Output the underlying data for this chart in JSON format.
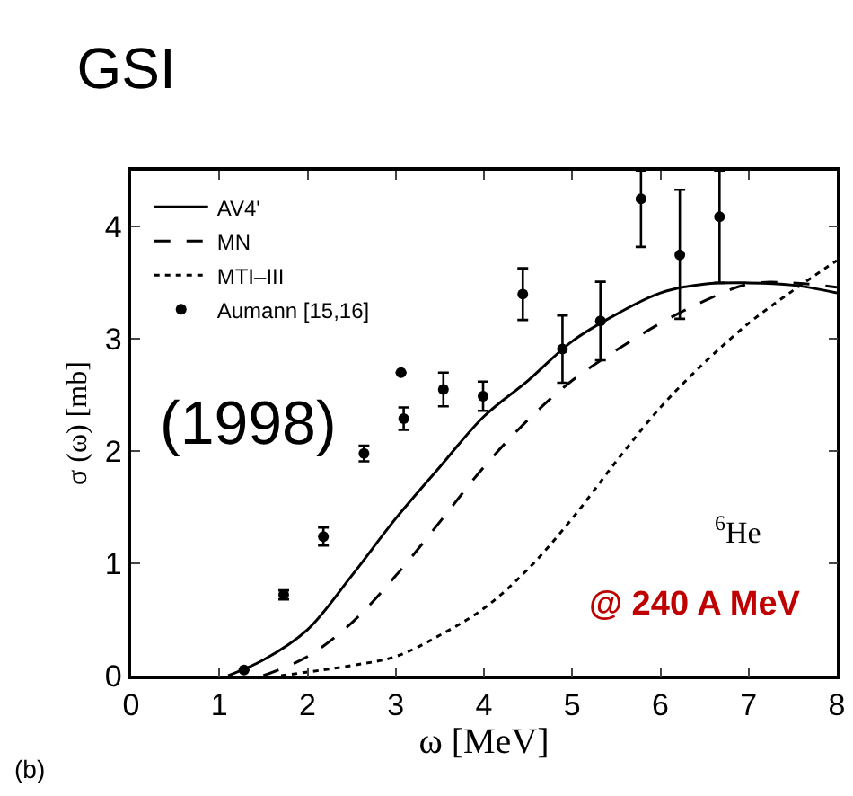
{
  "chart_data": {
    "type": "line",
    "title": "GSI",
    "xlabel": "ω [MeV]",
    "ylabel": "σ (ω) [mb]",
    "annotations": [
      "(1998)",
      "$^{6}$He",
      "@ 240 A MeV",
      "(b)"
    ],
    "xlim": [
      0,
      8
    ],
    "ylim": [
      0,
      4.5
    ],
    "xticks": [
      0,
      1,
      2,
      3,
      4,
      5,
      6,
      7,
      8
    ],
    "yticks": [
      0,
      1,
      2,
      3,
      4
    ],
    "grid": false,
    "legend": "top left",
    "series": [
      {
        "name": "AV4'",
        "color": "#000000",
        "line_style": "solid",
        "marker": "none",
        "x": [
          1.1,
          1.5,
          2,
          2.5,
          3,
          3.5,
          4,
          4.5,
          5,
          5.5,
          6,
          6.5,
          7,
          7.5,
          8
        ],
        "values": [
          0,
          0.14,
          0.41,
          0.89,
          1.4,
          1.86,
          2.31,
          2.63,
          2.98,
          3.22,
          3.41,
          3.49,
          3.5,
          3.48,
          3.41
        ]
      },
      {
        "name": "MN",
        "color": "#000000",
        "line_style": "dashed",
        "marker": "none",
        "x": [
          1.5,
          2,
          2.5,
          3,
          3.5,
          4,
          4.5,
          5,
          5.5,
          6,
          6.5,
          7,
          7.5,
          8
        ],
        "values": [
          0,
          0.17,
          0.47,
          0.89,
          1.37,
          1.86,
          2.28,
          2.63,
          2.9,
          3.14,
          3.34,
          3.49,
          3.5,
          3.46
        ]
      },
      {
        "name": "MTI–III",
        "color": "#000000",
        "line_style": "dotted",
        "marker": "none",
        "x": [
          1.7,
          2.5,
          3,
          3.5,
          4,
          4.5,
          5,
          5.5,
          6,
          6.5,
          7,
          7.5,
          8
        ],
        "values": [
          0,
          0.09,
          0.17,
          0.36,
          0.6,
          0.95,
          1.4,
          1.91,
          2.39,
          2.79,
          3.14,
          3.43,
          3.7
        ]
      },
      {
        "name": "Aumann [15,16]",
        "type": "scatter",
        "color": "#000000",
        "marker": "circle",
        "x": [
          1.28,
          1.73,
          2.18,
          2.64,
          3.06,
          3.09,
          3.54,
          3.99,
          4.44,
          4.89,
          5.32,
          5.78,
          6.22,
          6.67
        ],
        "values": [
          0.05,
          0.72,
          1.24,
          1.98,
          2.7,
          2.29,
          2.55,
          2.49,
          3.4,
          2.91,
          3.16,
          4.25,
          3.75,
          4.09
        ],
        "errors": [
          null,
          0.04,
          0.08,
          0.07,
          null,
          0.1,
          0.15,
          0.13,
          0.23,
          0.3,
          0.35,
          [
            3.82,
            4.5
          ],
          [
            3.18,
            4.33
          ],
          [
            3.5,
            4.5
          ]
        ]
      }
    ]
  }
}
